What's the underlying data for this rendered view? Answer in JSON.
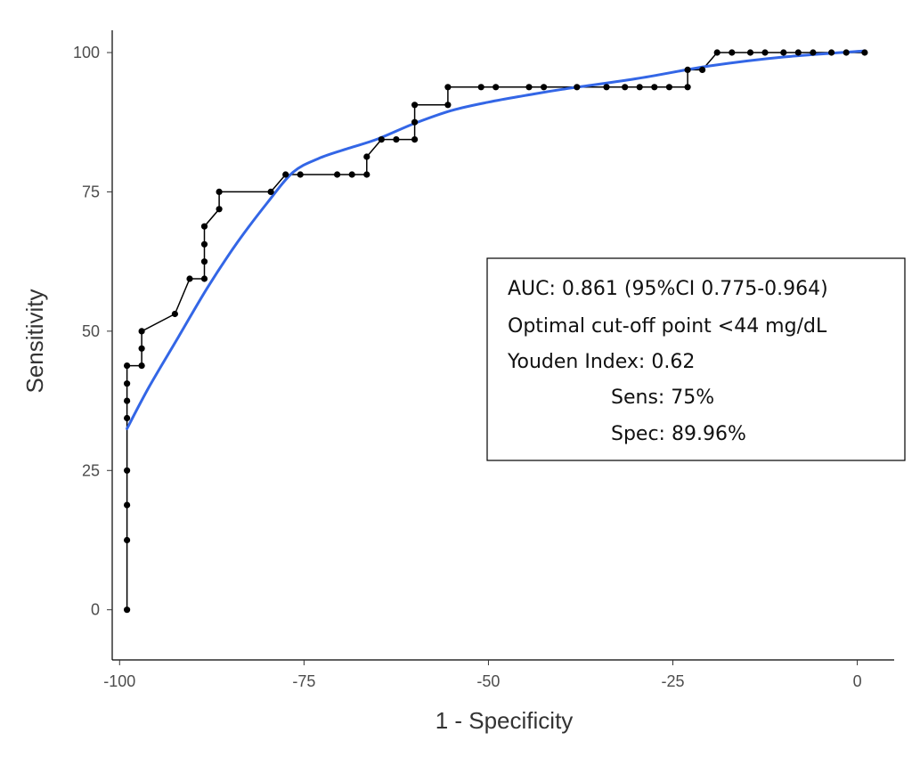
{
  "chart_data": {
    "type": "line",
    "title": "",
    "xlabel": "1 - Specificity",
    "ylabel": "Sensitivity",
    "xlim": [
      -101,
      5
    ],
    "ylim": [
      -9,
      104
    ],
    "x_ticks": [
      -100,
      -75,
      -50,
      -25,
      0
    ],
    "y_ticks": [
      0,
      25,
      50,
      75,
      100
    ],
    "grid": false,
    "series": [
      {
        "kind": "step-points",
        "color": "#000000",
        "points": [
          [
            -99,
            0
          ],
          [
            -99,
            12.5
          ],
          [
            -99,
            18.8
          ],
          [
            -99,
            25
          ],
          [
            -99,
            34.4
          ],
          [
            -99,
            37.5
          ],
          [
            -99,
            40.6
          ],
          [
            -99,
            43.8
          ],
          [
            -97,
            43.8
          ],
          [
            -97,
            46.9
          ],
          [
            -97,
            50
          ],
          [
            -92.5,
            53.1
          ],
          [
            -90.5,
            59.4
          ],
          [
            -88.5,
            59.4
          ],
          [
            -88.5,
            62.5
          ],
          [
            -88.5,
            65.6
          ],
          [
            -88.5,
            68.8
          ],
          [
            -86.5,
            71.9
          ],
          [
            -86.5,
            75
          ],
          [
            -79.5,
            75
          ],
          [
            -77.5,
            78.1
          ],
          [
            -75.5,
            78.1
          ],
          [
            -70.5,
            78.1
          ],
          [
            -68.5,
            78.1
          ],
          [
            -66.5,
            78.1
          ],
          [
            -66.5,
            81.3
          ],
          [
            -64.5,
            84.4
          ],
          [
            -62.5,
            84.4
          ],
          [
            -60,
            84.4
          ],
          [
            -60,
            87.5
          ],
          [
            -60,
            90.6
          ],
          [
            -55.5,
            90.6
          ],
          [
            -55.5,
            93.8
          ],
          [
            -51,
            93.8
          ],
          [
            -49,
            93.8
          ],
          [
            -44.5,
            93.8
          ],
          [
            -42.5,
            93.8
          ],
          [
            -38,
            93.8
          ],
          [
            -34,
            93.8
          ],
          [
            -31.5,
            93.8
          ],
          [
            -29.5,
            93.8
          ],
          [
            -27.5,
            93.8
          ],
          [
            -25.5,
            93.8
          ],
          [
            -23,
            93.8
          ],
          [
            -23,
            96.9
          ],
          [
            -21,
            96.9
          ],
          [
            -19,
            100
          ],
          [
            -17,
            100
          ],
          [
            -14.5,
            100
          ],
          [
            -12.5,
            100
          ],
          [
            -10,
            100
          ],
          [
            -8,
            100
          ],
          [
            -6,
            100
          ],
          [
            -3.5,
            100
          ],
          [
            -1.5,
            100
          ],
          [
            1,
            100
          ]
        ]
      },
      {
        "kind": "smooth",
        "color": "#3366e6",
        "points": [
          [
            -99,
            32.5
          ],
          [
            -96,
            40
          ],
          [
            -92,
            49
          ],
          [
            -88,
            58
          ],
          [
            -84,
            66
          ],
          [
            -80,
            73
          ],
          [
            -76.5,
            78.5
          ],
          [
            -73,
            81
          ],
          [
            -69,
            82.8
          ],
          [
            -65,
            84.5
          ],
          [
            -60,
            87.3
          ],
          [
            -55,
            89.6
          ],
          [
            -50,
            91.1
          ],
          [
            -45,
            92.3
          ],
          [
            -40,
            93.4
          ],
          [
            -30,
            95.3
          ],
          [
            -20,
            97.6
          ],
          [
            -10,
            99.2
          ],
          [
            1,
            100.3
          ]
        ]
      }
    ]
  },
  "annotation": {
    "lines": [
      "AUC: 0.861 (95%CI 0.775-0.964)",
      "Optimal cut-off point <44 mg/dL",
      "Youden Index: 0.62",
      "Sens: 75%",
      "Spec: 89.96%"
    ]
  }
}
